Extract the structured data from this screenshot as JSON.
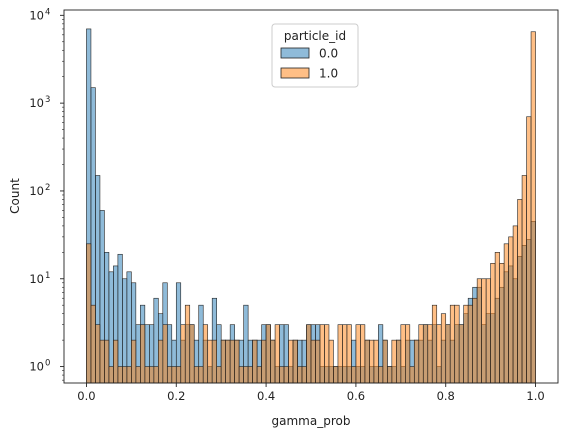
{
  "chart_data": {
    "type": "histogram",
    "xlabel": "gamma_prob",
    "ylabel": "Count",
    "xlim": [
      -0.05,
      1.05
    ],
    "ylim": [
      0.65,
      11500
    ],
    "yscale": "log",
    "bins": 100,
    "bin_width": 0.01,
    "bin_start": 0.0,
    "x_ticks": [
      "0.0",
      "0.2",
      "0.4",
      "0.6",
      "0.8",
      "1.0"
    ],
    "x_tick_values": [
      0.0,
      0.2,
      0.4,
      0.6,
      0.8,
      1.0
    ],
    "y_ticks": [
      1,
      10,
      100,
      1000,
      10000
    ],
    "y_tick_labels": [
      {
        "base": "10",
        "exp": "0"
      },
      {
        "base": "10",
        "exp": "1"
      },
      {
        "base": "10",
        "exp": "2"
      },
      {
        "base": "10",
        "exp": "3"
      },
      {
        "base": "10",
        "exp": "4"
      }
    ],
    "legend": {
      "title": "particle_id",
      "placement": "upper center"
    },
    "grid": false,
    "series": [
      {
        "name": "0.0",
        "color": "#1f77b4",
        "values": [
          7000,
          1500,
          150,
          60,
          20,
          12,
          14,
          19,
          10,
          12,
          9,
          3,
          5,
          3,
          3,
          6,
          4,
          9,
          3,
          2,
          9,
          2,
          3,
          3,
          2,
          5,
          2,
          1,
          6,
          3,
          2,
          2,
          3,
          2,
          2,
          5,
          2,
          2,
          2,
          3,
          3,
          2,
          1,
          3,
          3,
          1,
          2,
          2,
          2,
          3,
          3,
          3,
          1,
          1,
          1,
          1,
          1,
          1,
          1,
          2,
          1,
          1,
          2,
          1,
          1,
          3,
          2,
          1,
          1,
          2,
          1,
          2,
          2,
          2,
          2,
          3,
          2,
          3,
          1,
          2,
          3,
          2,
          3,
          3,
          4,
          6,
          8,
          8,
          3,
          4,
          4,
          6,
          8,
          12,
          14,
          10,
          18,
          24,
          28,
          45
        ]
      },
      {
        "name": "1.0",
        "color": "#ff7f0e",
        "values": [
          25,
          5,
          3,
          2,
          2,
          1,
          2,
          1,
          1,
          1,
          2,
          1,
          3,
          1,
          1,
          1,
          2,
          3,
          1,
          1,
          1,
          3,
          5,
          3,
          1,
          1,
          3,
          2,
          2,
          1,
          2,
          2,
          2,
          2,
          1,
          1,
          1,
          2,
          1,
          2,
          3,
          2,
          3,
          1,
          1,
          2,
          2,
          1,
          1,
          3,
          2,
          2,
          3,
          3,
          2,
          1,
          3,
          3,
          3,
          1,
          3,
          3,
          2,
          2,
          2,
          1,
          2,
          1,
          2,
          2,
          3,
          3,
          1,
          2,
          3,
          3,
          3,
          5,
          3,
          4,
          3,
          5,
          5,
          3,
          5,
          5,
          6,
          10,
          10,
          10,
          15,
          20,
          15,
          25,
          30,
          40,
          80,
          150,
          700,
          6500
        ]
      }
    ]
  }
}
